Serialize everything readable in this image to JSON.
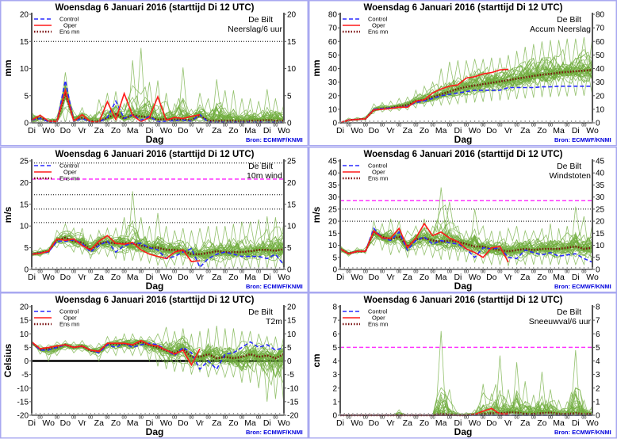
{
  "common": {
    "title": "Woensdag  6 Januari  2016  (starttijd  Di 12 UTC)",
    "location": "De Bilt",
    "xlabel": "Dag",
    "source": "Bron: ECMWF/KNMI",
    "x_labels": [
      "Di",
      "Wo",
      "Do",
      "Vr",
      "Za",
      "Zo",
      "Ma",
      "Di",
      "Wo",
      "Do",
      "Vr",
      "Za",
      "Zo",
      "Ma",
      "Di",
      "Wo"
    ],
    "midnight_label": "00",
    "legend": [
      "Control",
      "Oper",
      "Ens mn"
    ],
    "time_step_hours": 12,
    "colors": {
      "control": "#2a2aff",
      "oper": "#ff1a1a",
      "ens_mean": "#7a1010",
      "members": "#6fac3c",
      "threshold": "#ff33ff",
      "border": "#a8a8f0",
      "source": "#0000dd"
    }
  },
  "chart_data": [
    {
      "type": "line",
      "title": "Woensdag  6 Januari  2016  (starttijd  Di 12 UTC)",
      "parameter": "Neerslag/6 uur",
      "ylabel": "mm",
      "ylim": [
        0,
        20
      ],
      "yticks": [
        0,
        5,
        10,
        15,
        20
      ],
      "ref_lines": [
        {
          "value": 15,
          "style": "dotted",
          "color": "#000000"
        }
      ],
      "series": [
        {
          "name": "Control",
          "values": [
            0.5,
            0.8,
            0.2,
            0.1,
            7.8,
            0.2,
            0.8,
            0.1,
            0.1,
            1.0,
            4.0,
            0.8,
            1.5,
            0.5,
            1.2,
            0.2,
            0.3,
            0.4,
            0.5,
            0.3,
            1.5,
            0.1,
            0.1,
            0.1,
            0.1,
            0.1,
            0.1,
            0.1,
            0.1,
            0.1,
            0.1
          ]
        },
        {
          "name": "Oper",
          "values": [
            0.5,
            1.4,
            0.3,
            0.2,
            6.0,
            0.3,
            1.5,
            0.2,
            0.1,
            3.9,
            0.6,
            5.4,
            1.4,
            0.2,
            1.0,
            4.8,
            0.5,
            1.0,
            0.8,
            1.2,
            1.5
          ]
        },
        {
          "name": "Ens mn",
          "values": [
            0.6,
            0.9,
            0.3,
            0.3,
            5.5,
            0.5,
            0.9,
            0.3,
            0.3,
            0.9,
            1.6,
            0.8,
            1.4,
            1.2,
            1.0,
            0.6,
            0.7,
            0.6,
            0.6,
            0.5,
            1.4,
            0.4,
            0.4,
            0.4,
            0.4,
            0.3,
            0.4,
            0.4,
            0.5,
            0.4,
            0.4
          ]
        }
      ],
      "ensemble_min": [
        0,
        0,
        0,
        0,
        0,
        0,
        0,
        0,
        0,
        0,
        0,
        0,
        0,
        0,
        0,
        0,
        0,
        0,
        0,
        0,
        0,
        0,
        0,
        0,
        0,
        0,
        0,
        0,
        0,
        0,
        0
      ],
      "ensemble_max": [
        2.0,
        1.5,
        0.8,
        1.2,
        9.3,
        2.0,
        2.8,
        1.5,
        4.3,
        5.5,
        5.8,
        3.5,
        11.5,
        13.8,
        7.5,
        7.8,
        5.5,
        3.5,
        10.2,
        2.5,
        5.5,
        4.5,
        8.0,
        6.0,
        6.0,
        4.5,
        4.5,
        4.0,
        6.2,
        4.5,
        3.5
      ]
    },
    {
      "type": "line",
      "title": "Woensdag  6 Januari  2016  (starttijd  Di 12 UTC)",
      "parameter": "Accum Neerslag",
      "ylabel": "mm",
      "ylim": [
        0,
        80
      ],
      "yticks": [
        0,
        10,
        20,
        30,
        40,
        50,
        60,
        70,
        80
      ],
      "ref_lines": [],
      "series": [
        {
          "name": "Control",
          "values": [
            0,
            2,
            2.5,
            3,
            10,
            10.5,
            11,
            11.5,
            12,
            15,
            16,
            18,
            20,
            21,
            22,
            23,
            24,
            24,
            24,
            24,
            26,
            26,
            26,
            26,
            26.5,
            26.5,
            27,
            27,
            27,
            27,
            27
          ]
        },
        {
          "name": "Oper",
          "values": [
            0,
            2,
            2.5,
            3,
            9.5,
            10,
            10.5,
            11.5,
            11.5,
            16,
            17,
            22,
            25,
            27,
            28,
            33,
            34,
            36,
            37,
            39,
            39.5
          ]
        },
        {
          "name": "Ens mn",
          "values": [
            0,
            2,
            2.5,
            3,
            9.5,
            10.5,
            11,
            12,
            13,
            16,
            17,
            19,
            21,
            23,
            25,
            26.5,
            27.5,
            28.5,
            29.5,
            30.5,
            31.5,
            32.5,
            33.5,
            34.5,
            35.5,
            36,
            37,
            37.5,
            38,
            38.5,
            39
          ]
        }
      ],
      "ensemble_min": [
        0,
        1,
        1.5,
        2,
        7,
        8,
        8.5,
        9,
        9.5,
        11,
        12,
        12.5,
        13,
        13.5,
        14,
        14.5,
        15,
        15.5,
        16,
        16.5,
        17,
        17.5,
        18,
        18.5,
        19,
        19,
        19.5,
        19.5,
        20,
        20,
        20
      ],
      "ensemble_max": [
        0,
        3.5,
        4,
        4.5,
        14,
        15,
        16,
        18,
        19,
        24,
        27,
        30,
        40,
        45,
        46,
        46,
        47,
        47,
        48,
        48,
        50,
        53,
        56,
        58,
        60,
        61,
        61,
        62,
        62,
        63,
        63
      ]
    },
    {
      "type": "line",
      "title": "Woensdag  6 Januari  2016  (starttijd  Di 12 UTC)",
      "parameter": "10m wind",
      "ylabel": "m/s",
      "ylim": [
        0,
        25
      ],
      "yticks": [
        0,
        5,
        10,
        15,
        20,
        25
      ],
      "ref_lines": [
        {
          "value": 10.8,
          "style": "dotted",
          "color": "#000000"
        },
        {
          "value": 13.9,
          "style": "dotted",
          "color": "#000000"
        },
        {
          "value": 17.2,
          "style": "dotted",
          "color": "#000000"
        },
        {
          "value": 20.8,
          "style": "dashed",
          "color": "#ff33ff"
        },
        {
          "value": 24.5,
          "style": "dotted",
          "color": "#000000"
        }
      ],
      "series": [
        {
          "name": "Control",
          "values": [
            3.5,
            3.8,
            4,
            6.5,
            6.5,
            6.8,
            6,
            4,
            5.5,
            6.5,
            4,
            5.5,
            6,
            6,
            5,
            4.5,
            2.5,
            3,
            4,
            4.8,
            0.5,
            2.5,
            3.5,
            4,
            3.5,
            3,
            3,
            3,
            2.5,
            3.5,
            1
          ]
        },
        {
          "name": "Oper",
          "values": [
            3.5,
            3.7,
            4.2,
            7,
            6.7,
            7,
            5.5,
            4.5,
            6.5,
            7.8,
            6,
            5.8,
            6.2,
            4.5,
            3.5,
            3,
            2.5,
            4,
            4.5,
            1.8,
            2
          ]
        },
        {
          "name": "Ens mn",
          "values": [
            3.5,
            3.8,
            4.2,
            6.8,
            7.3,
            6.5,
            6.2,
            4.5,
            6,
            6.3,
            6,
            6,
            6,
            5.5,
            5,
            5,
            4.5,
            4.5,
            4.3,
            3.5,
            3.5,
            3.8,
            4.2,
            4,
            4,
            4,
            4.2,
            4.5,
            4.5,
            4.3,
            4.7
          ]
        }
      ],
      "ensemble_min": [
        3,
        3,
        3.5,
        5,
        5,
        4,
        3.5,
        2.5,
        3.5,
        3,
        2.5,
        2,
        2,
        2,
        1.5,
        1,
        0.5,
        1,
        1,
        0.5,
        0.5,
        0.3,
        0.5,
        0.5,
        0.3,
        0.3,
        0.2,
        0.3,
        0.2,
        0.2,
        0.3
      ],
      "ensemble_max": [
        4.2,
        5,
        5,
        9,
        10.5,
        9.5,
        9.5,
        8,
        9,
        9.5,
        9.5,
        12,
        18,
        12,
        10,
        13,
        10,
        9,
        9.5,
        9,
        9.5,
        10,
        10,
        10,
        10.5,
        11,
        11,
        11.5,
        12.2,
        12,
        11
      ]
    },
    {
      "type": "line",
      "title": "Woensdag  6 Januari  2016  (starttijd  Di 12 UTC)",
      "parameter": "Windstoten",
      "ylabel": "m/s",
      "ylim": [
        0,
        45
      ],
      "yticks": [
        0,
        5,
        10,
        15,
        20,
        25,
        30,
        35,
        40,
        45
      ],
      "ref_lines": [
        {
          "value": 20,
          "style": "dotted",
          "color": "#000000"
        },
        {
          "value": 25,
          "style": "dotted",
          "color": "#000000"
        },
        {
          "value": 28.5,
          "style": "dashed",
          "color": "#ff33ff"
        }
      ],
      "series": [
        {
          "name": "Control",
          "values": [
            8.5,
            6.5,
            7.5,
            7.5,
            17,
            13,
            12,
            15.5,
            8,
            12,
            13.5,
            10.5,
            12,
            11,
            10.5,
            8.5,
            5,
            9,
            8.5,
            9,
            5,
            4.5,
            8,
            7,
            6,
            7,
            5.5,
            6,
            6.5,
            4.5,
            3
          ]
        },
        {
          "name": "Oper",
          "values": [
            8.5,
            6.5,
            7.5,
            7.5,
            16,
            13,
            13,
            17,
            9,
            13,
            19,
            14,
            15.5,
            13,
            11.5,
            8.5,
            7,
            5,
            9,
            9.5,
            3
          ]
        },
        {
          "name": "Ens mn",
          "values": [
            8.5,
            6.5,
            7.5,
            7.5,
            15.5,
            13.5,
            12.5,
            13.5,
            9.5,
            12.5,
            13,
            12,
            11.5,
            12,
            11.5,
            10.5,
            9.5,
            9.5,
            8.5,
            8,
            7.5,
            8,
            8.5,
            8,
            8.5,
            8.5,
            8.5,
            9,
            9.5,
            8.5,
            9
          ]
        }
      ],
      "ensemble_min": [
        7,
        5.5,
        6.5,
        6.5,
        10,
        8,
        6,
        7,
        5,
        6,
        6,
        5,
        4,
        4,
        3.5,
        3,
        3,
        2.5,
        2,
        2,
        1.5,
        2,
        2,
        2,
        2,
        2,
        2,
        2,
        2,
        2,
        2
      ],
      "ensemble_max": [
        10,
        8,
        9,
        9,
        20,
        19,
        21,
        20,
        16,
        18,
        21,
        18,
        34,
        28,
        18,
        16,
        25,
        18,
        16,
        16,
        17,
        18,
        16,
        16,
        17,
        19,
        17,
        18,
        26,
        22,
        19
      ]
    },
    {
      "type": "line",
      "title": "Woensdag  6 Januari  2016  (starttijd  Di 12 UTC)",
      "parameter": "T2m",
      "ylabel": "Celsius",
      "ylim": [
        -20,
        20
      ],
      "yticks": [
        -20,
        -15,
        -10,
        -5,
        0,
        5,
        10,
        15,
        20
      ],
      "ref_lines": [
        {
          "value": 0,
          "style": "solid",
          "color": "#000000"
        }
      ],
      "series": [
        {
          "name": "Control",
          "values": [
            7,
            4,
            4,
            5,
            6,
            5,
            5.5,
            4,
            3,
            6,
            5,
            6.5,
            5,
            6,
            6.5,
            6,
            4,
            2,
            5,
            3,
            -3,
            0,
            -3,
            2.5,
            3,
            5,
            7,
            5,
            6,
            4,
            5
          ]
        },
        {
          "name": "Oper",
          "values": [
            7,
            4.5,
            5,
            5.5,
            6,
            5,
            5.5,
            4,
            3.5,
            6.5,
            6.5,
            6.5,
            6,
            7.5,
            6,
            5.5,
            4,
            2.5,
            4,
            -1.5,
            4.5
          ]
        },
        {
          "name": "Ens mn",
          "values": [
            6.8,
            4.2,
            4.5,
            5,
            6,
            5,
            5.5,
            3.8,
            3.5,
            6.2,
            6.3,
            6.3,
            5.8,
            7,
            5.8,
            5,
            3.8,
            3,
            4.5,
            1.5,
            1.5,
            2.5,
            1,
            1.5,
            1,
            1.5,
            2.5,
            1.5,
            2,
            1,
            2.5
          ]
        }
      ],
      "ensemble_min": [
        6,
        2.5,
        0,
        2,
        4,
        3,
        3.5,
        2,
        0,
        3,
        2,
        3,
        2,
        2,
        0,
        -2,
        -3,
        -4,
        -4,
        -5,
        -4,
        -6,
        -5,
        -6,
        -6,
        -8,
        -8,
        -10,
        -15,
        -14,
        -17
      ],
      "ensemble_max": [
        7.5,
        6,
        6,
        7,
        7.5,
        7,
        7.5,
        6,
        6.5,
        9,
        9,
        10,
        10,
        9,
        9,
        10,
        12.5,
        11,
        12,
        10,
        11,
        12,
        13,
        12,
        12,
        11,
        11,
        10,
        9,
        9,
        9.5
      ]
    },
    {
      "type": "line",
      "title": "Woensdag  6 Januari  2016  (starttijd  Di 12 UTC)",
      "parameter": "Sneeuwval/6 uur",
      "ylabel": "cm",
      "ylim": [
        0,
        8
      ],
      "yticks": [
        0,
        1,
        2,
        3,
        4,
        5,
        6,
        7,
        8
      ],
      "ref_lines": [
        {
          "value": 5,
          "style": "dashed",
          "color": "#ff33ff"
        }
      ],
      "series": [
        {
          "name": "Control",
          "values": [
            0,
            0,
            0,
            0,
            0,
            0,
            0,
            0,
            0,
            0,
            0,
            0,
            0,
            0,
            0,
            0,
            0,
            0,
            0,
            0,
            0,
            0,
            0,
            0,
            0,
            0,
            0,
            0,
            0,
            0,
            0
          ]
        },
        {
          "name": "Oper",
          "values": [
            0,
            0,
            0,
            0,
            0,
            0,
            0,
            0,
            0,
            0,
            0,
            0,
            0,
            0,
            0,
            0,
            0.05,
            0.3,
            0.5,
            0.1,
            0.1
          ]
        },
        {
          "name": "Ens mn",
          "values": [
            0,
            0,
            0,
            0,
            0,
            0,
            0,
            0,
            0,
            0,
            0,
            0,
            0.1,
            0.05,
            0,
            0,
            0.05,
            0.1,
            0.15,
            0.15,
            0.2,
            0.2,
            0.1,
            0.1,
            0.15,
            0.2,
            0.1,
            0.1,
            0.15,
            0.1,
            0.1
          ]
        }
      ],
      "ensemble_min": [
        0,
        0,
        0,
        0,
        0,
        0,
        0,
        0,
        0,
        0,
        0,
        0,
        0,
        0,
        0,
        0,
        0,
        0,
        0,
        0,
        0,
        0,
        0,
        0,
        0,
        0,
        0,
        0,
        0,
        0,
        0
      ],
      "ensemble_max": [
        0,
        0,
        0,
        0,
        0,
        0,
        0,
        0.4,
        0,
        0,
        0,
        0,
        6.2,
        1.9,
        0.2,
        0.2,
        0.4,
        2.3,
        1.6,
        4.4,
        1.9,
        3.9,
        2.5,
        1.5,
        3.2,
        1.9,
        1.1,
        1.0,
        4.8,
        1.1,
        0.7
      ]
    }
  ]
}
